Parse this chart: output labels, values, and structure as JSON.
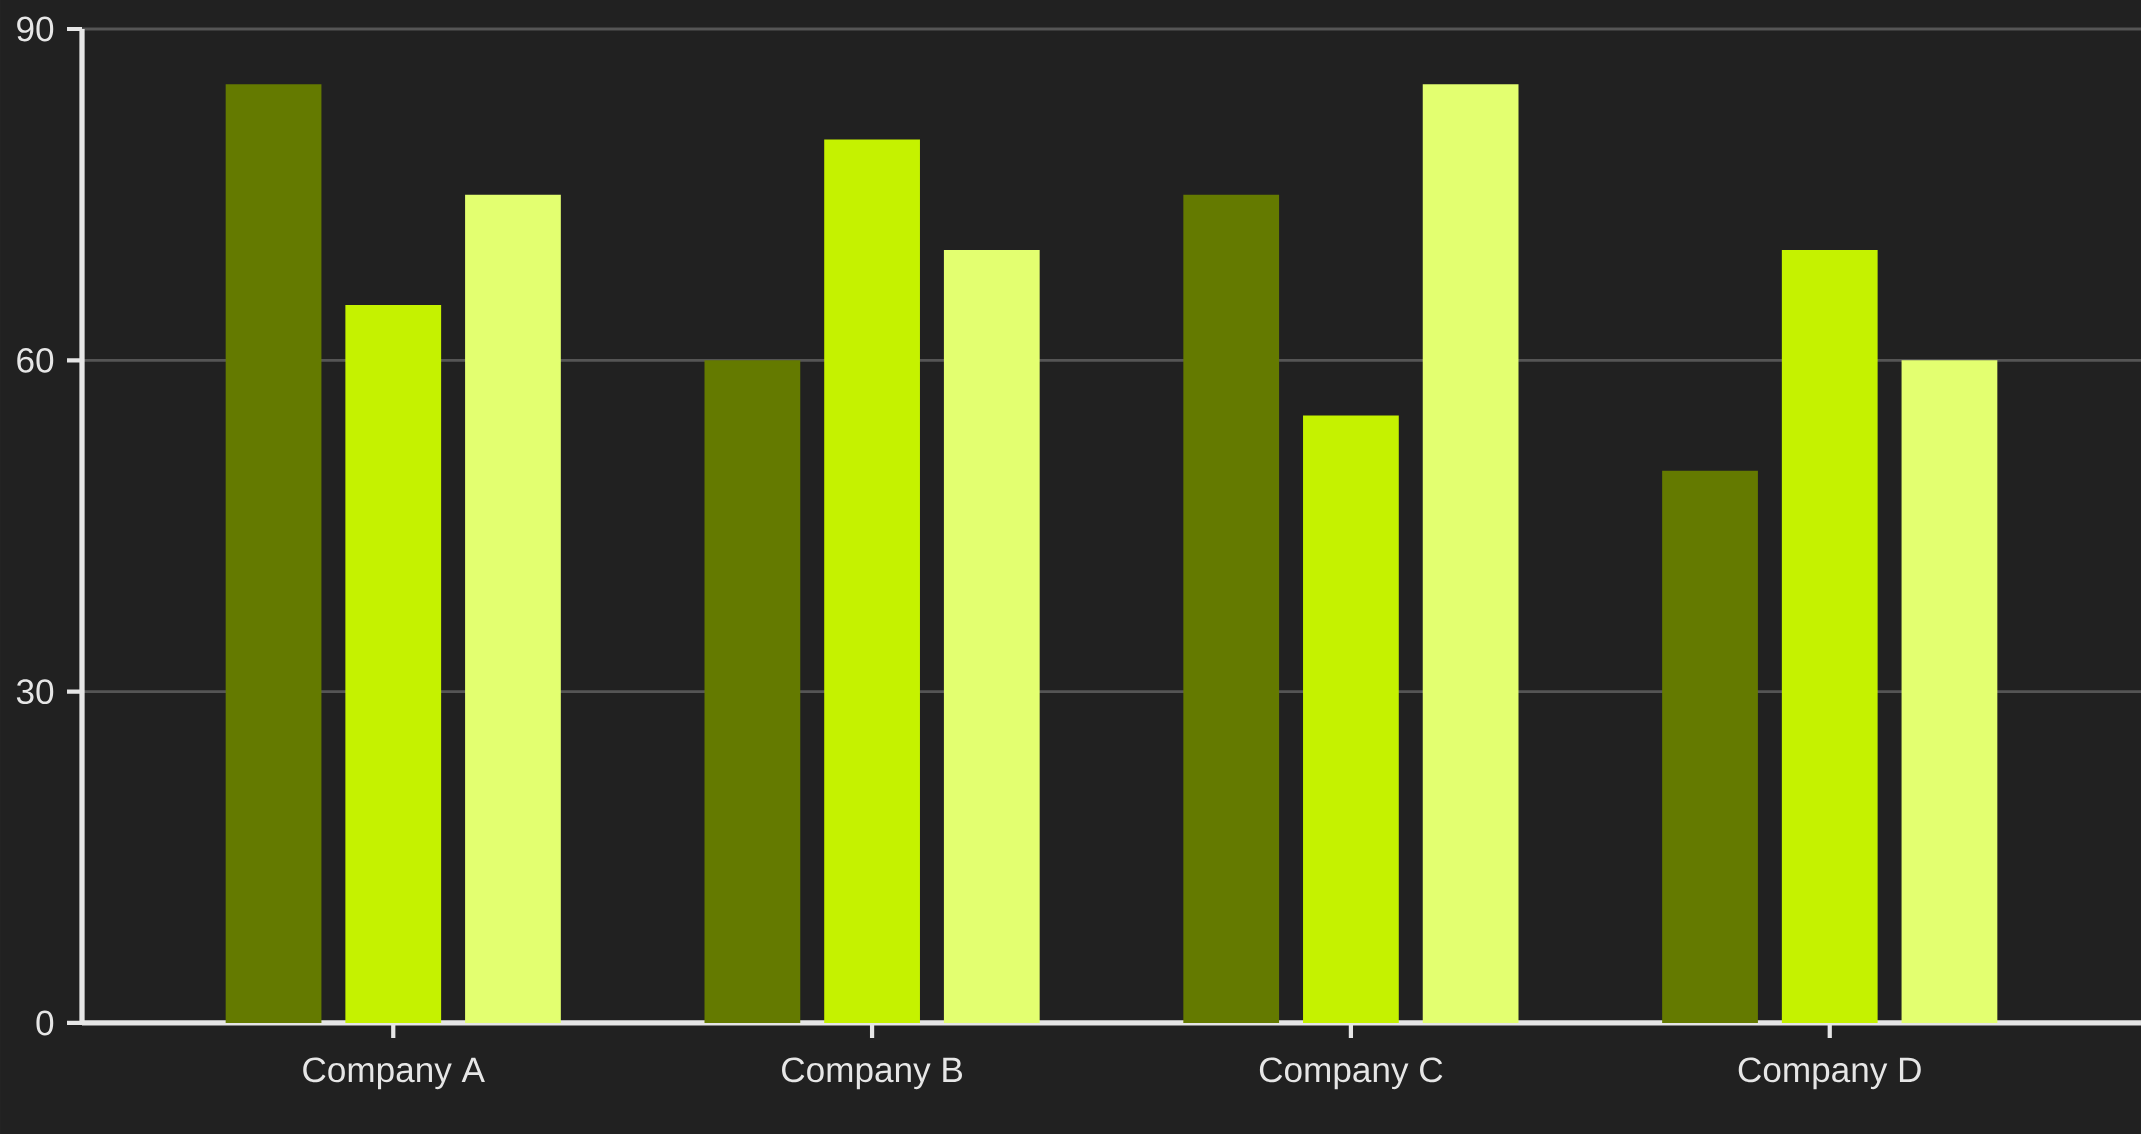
{
  "chart_data": {
    "type": "bar",
    "categories": [
      "Company A",
      "Company B",
      "Company C",
      "Company D"
    ],
    "series": [
      {
        "color": "#647a00",
        "values": [
          85,
          60,
          75,
          50
        ]
      },
      {
        "color": "#c5f200",
        "values": [
          65,
          80,
          55,
          70
        ]
      },
      {
        "color": "#e3ff70",
        "values": [
          75,
          70,
          85,
          60
        ]
      }
    ],
    "ylim": [
      0,
      90
    ],
    "yticks": [
      0,
      30,
      60,
      90
    ],
    "grid": "y"
  }
}
